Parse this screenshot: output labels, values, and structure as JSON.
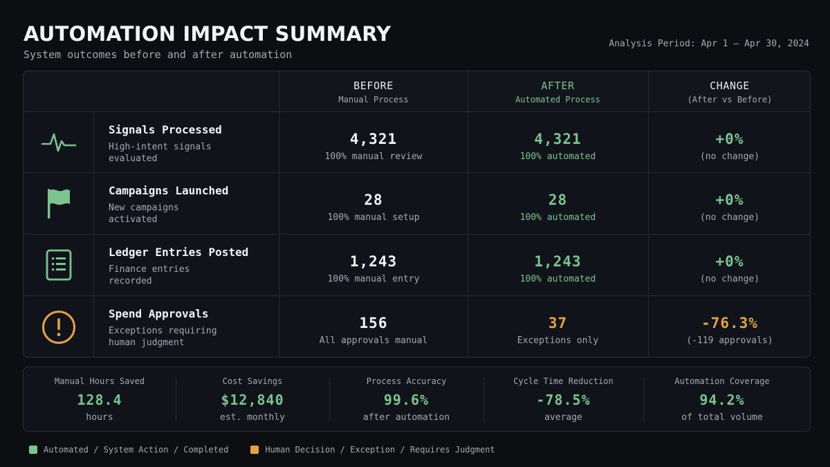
{
  "header": {
    "title": "AUTOMATION IMPACT SUMMARY",
    "subtitle": "System outcomes before and after automation",
    "period": "Analysis Period: Apr 1 – Apr 30, 2024"
  },
  "columns": {
    "before": {
      "title": "BEFORE",
      "sub": "Manual Process"
    },
    "after": {
      "title": "AFTER",
      "sub": "Automated Process"
    },
    "change": {
      "title": "CHANGE",
      "sub": "(After vs Before)"
    }
  },
  "rows": [
    {
      "icon": "pulse-icon",
      "title": "Signals Processed",
      "desc": "High-intent signals evaluated",
      "before": {
        "value": "4,321",
        "sub": "100% manual review"
      },
      "after": {
        "value": "4,321",
        "sub": "100% automated"
      },
      "change": {
        "value": "+0%",
        "sub": "(no change)"
      }
    },
    {
      "icon": "flag-icon",
      "title": "Campaigns Launched",
      "desc": "New campaigns activated",
      "before": {
        "value": "28",
        "sub": "100% manual setup"
      },
      "after": {
        "value": "28",
        "sub": "100% automated"
      },
      "change": {
        "value": "+0%",
        "sub": "(no change)"
      }
    },
    {
      "icon": "ledger-icon",
      "title": "Ledger Entries Posted",
      "desc": "Finance entries recorded",
      "before": {
        "value": "1,243",
        "sub": "100% manual entry"
      },
      "after": {
        "value": "1,243",
        "sub": "100% automated"
      },
      "change": {
        "value": "+0%",
        "sub": "(no change)"
      }
    },
    {
      "icon": "alert-icon",
      "title": "Spend Approvals",
      "desc": "Exceptions requiring human judgment",
      "before": {
        "value": "156",
        "sub": "All approvals manual"
      },
      "after": {
        "value": "37",
        "sub": "Exceptions only"
      },
      "change": {
        "value": "-76.3%",
        "sub": "(-119 approvals)"
      }
    }
  ],
  "stats": [
    {
      "label": "Manual Hours Saved",
      "value": "128.4",
      "sub": "hours"
    },
    {
      "label": "Cost Savings",
      "value": "$12,840",
      "sub": "est. monthly"
    },
    {
      "label": "Process Accuracy",
      "value": "99.6%",
      "sub": "after automation"
    },
    {
      "label": "Cycle Time Reduction",
      "value": "-78.5%",
      "sub": "average"
    },
    {
      "label": "Automation Coverage",
      "value": "94.2%",
      "sub": "of total volume"
    }
  ],
  "legend": {
    "automated": "Automated / System Action / Completed",
    "human": "Human Decision / Exception / Requires Judgment"
  },
  "colors": {
    "accent_green": "#7cc48e",
    "accent_orange": "#e8a33d",
    "background": "#0c0e12"
  }
}
